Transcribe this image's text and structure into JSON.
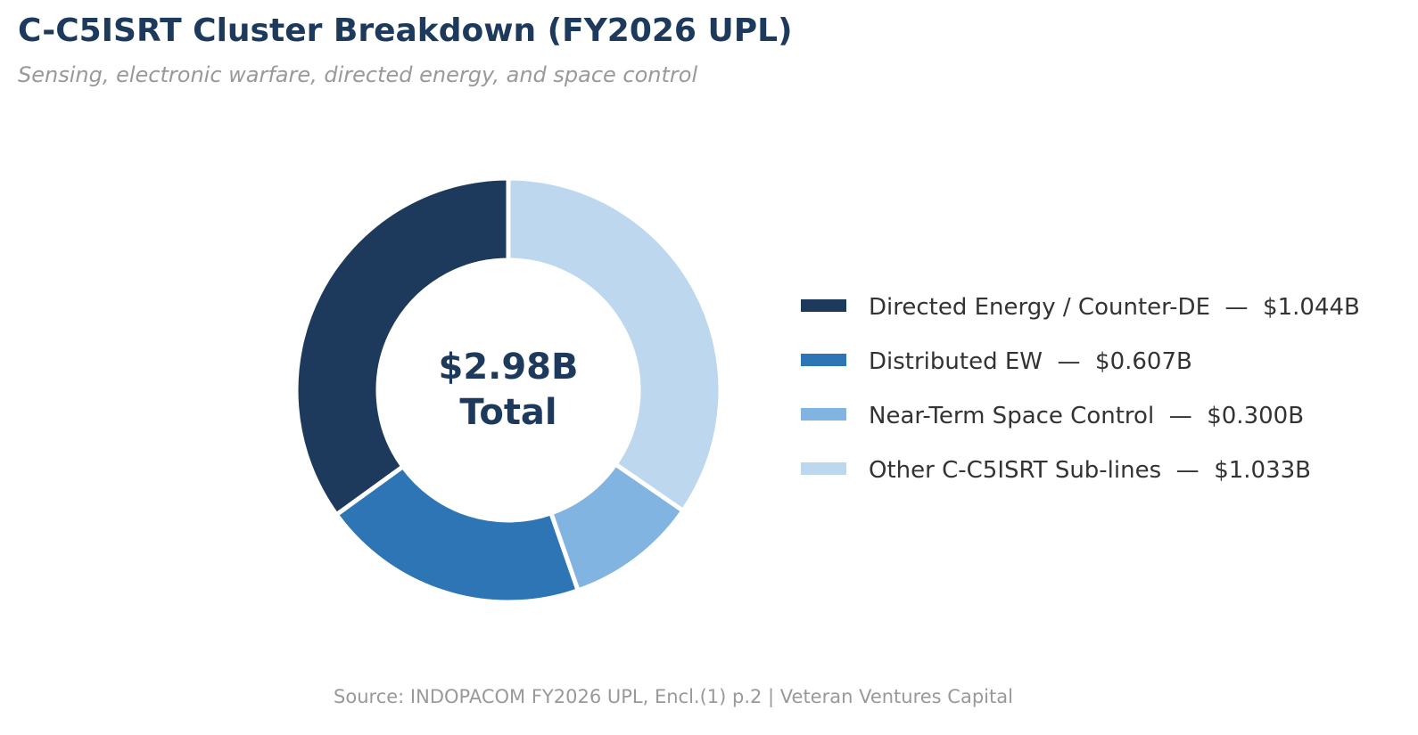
{
  "chart_data": {
    "type": "pie",
    "variant": "donut",
    "title": "C-C5ISRT Cluster Breakdown (FY2026 UPL)",
    "subtitle": "Sensing, electronic warfare, directed energy, and space control",
    "center_label": {
      "value": "$2.98B",
      "caption": "Total"
    },
    "units": "$B",
    "slices": [
      {
        "name": "Directed Energy / Counter-DE",
        "value": 1.044,
        "label": "Directed Energy / Counter-DE  —  $1.044B",
        "color": "#1d3a5c"
      },
      {
        "name": "Distributed EW",
        "value": 0.607,
        "label": "Distributed EW  —  $0.607B",
        "color": "#2e75b6"
      },
      {
        "name": "Near-Term Space Control",
        "value": 0.3,
        "label": "Near-Term Space Control  —  $0.300B",
        "color": "#82b4e1"
      },
      {
        "name": "Other C-C5ISRT Sub-lines",
        "value": 1.033,
        "label": "Other C-C5ISRT Sub-lines  —  $1.033B",
        "color": "#bdd7ee"
      }
    ],
    "legend_position": "right"
  },
  "source": "Source: INDOPACOM FY2026 UPL, Encl.(1) p.2  |  Veteran Ventures Capital"
}
